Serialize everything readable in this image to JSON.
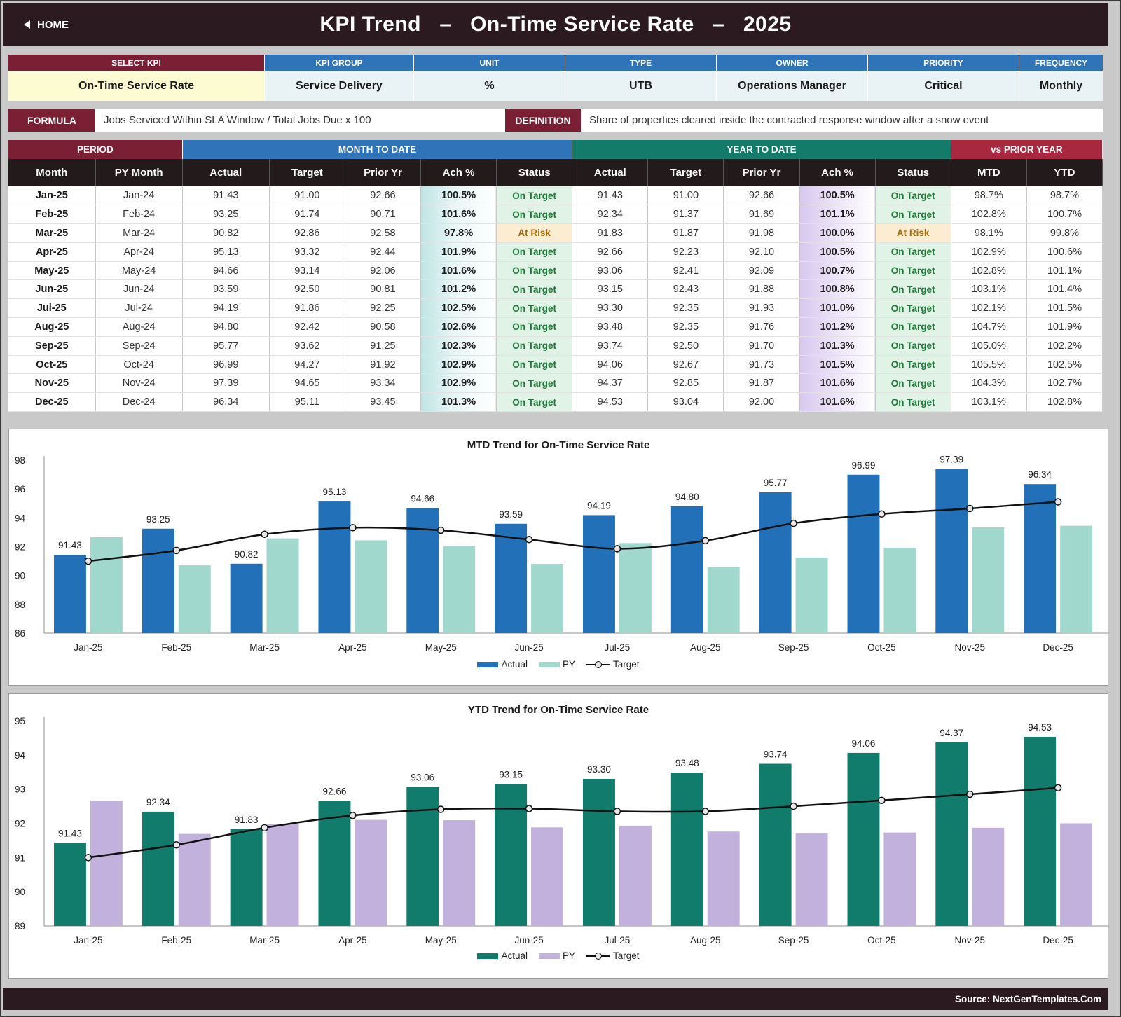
{
  "header": {
    "home_label": "HOME",
    "title": "KPI Trend   –   On-Time Service Rate   –   2025"
  },
  "kpi": {
    "headers": [
      "SELECT KPI",
      "KPI GROUP",
      "UNIT",
      "TYPE",
      "OWNER",
      "PRIORITY",
      "FREQUENCY"
    ],
    "values": [
      "On-Time Service Rate",
      "Service Delivery",
      "%",
      "UTB",
      "Operations Manager",
      "Critical",
      "Monthly"
    ]
  },
  "formula": {
    "formula_label": "FORMULA",
    "formula_text": "Jobs Serviced Within SLA Window / Total Jobs Due x 100",
    "definition_label": "DEFINITION",
    "definition_text": "Share of properties cleared inside the contracted response window after a snow event"
  },
  "table": {
    "groups": [
      "PERIOD",
      "MONTH TO DATE",
      "YEAR TO DATE",
      "vs PRIOR YEAR"
    ],
    "columns": [
      "Month",
      "PY Month",
      "Actual",
      "Target",
      "Prior Yr",
      "Ach %",
      "Status",
      "Actual",
      "Target",
      "Prior Yr",
      "Ach %",
      "Status",
      "MTD",
      "YTD"
    ],
    "rows": [
      [
        "Jan-25",
        "Jan-24",
        "91.43",
        "91.00",
        "92.66",
        "100.5%",
        "On Target",
        "91.43",
        "91.00",
        "92.66",
        "100.5%",
        "On Target",
        "98.7%",
        "98.7%"
      ],
      [
        "Feb-25",
        "Feb-24",
        "93.25",
        "91.74",
        "90.71",
        "101.6%",
        "On Target",
        "92.34",
        "91.37",
        "91.69",
        "101.1%",
        "On Target",
        "102.8%",
        "100.7%"
      ],
      [
        "Mar-25",
        "Mar-24",
        "90.82",
        "92.86",
        "92.58",
        "97.8%",
        "At Risk",
        "91.83",
        "91.87",
        "91.98",
        "100.0%",
        "At Risk",
        "98.1%",
        "99.8%"
      ],
      [
        "Apr-25",
        "Apr-24",
        "95.13",
        "93.32",
        "92.44",
        "101.9%",
        "On Target",
        "92.66",
        "92.23",
        "92.10",
        "100.5%",
        "On Target",
        "102.9%",
        "100.6%"
      ],
      [
        "May-25",
        "May-24",
        "94.66",
        "93.14",
        "92.06",
        "101.6%",
        "On Target",
        "93.06",
        "92.41",
        "92.09",
        "100.7%",
        "On Target",
        "102.8%",
        "101.1%"
      ],
      [
        "Jun-25",
        "Jun-24",
        "93.59",
        "92.50",
        "90.81",
        "101.2%",
        "On Target",
        "93.15",
        "92.43",
        "91.88",
        "100.8%",
        "On Target",
        "103.1%",
        "101.4%"
      ],
      [
        "Jul-25",
        "Jul-24",
        "94.19",
        "91.86",
        "92.25",
        "102.5%",
        "On Target",
        "93.30",
        "92.35",
        "91.93",
        "101.0%",
        "On Target",
        "102.1%",
        "101.5%"
      ],
      [
        "Aug-25",
        "Aug-24",
        "94.80",
        "92.42",
        "90.58",
        "102.6%",
        "On Target",
        "93.48",
        "92.35",
        "91.76",
        "101.2%",
        "On Target",
        "104.7%",
        "101.9%"
      ],
      [
        "Sep-25",
        "Sep-24",
        "95.77",
        "93.62",
        "91.25",
        "102.3%",
        "On Target",
        "93.74",
        "92.50",
        "91.70",
        "101.3%",
        "On Target",
        "105.0%",
        "102.2%"
      ],
      [
        "Oct-25",
        "Oct-24",
        "96.99",
        "94.27",
        "91.92",
        "102.9%",
        "On Target",
        "94.06",
        "92.67",
        "91.73",
        "101.5%",
        "On Target",
        "105.5%",
        "102.5%"
      ],
      [
        "Nov-25",
        "Nov-24",
        "97.39",
        "94.65",
        "93.34",
        "102.9%",
        "On Target",
        "94.37",
        "92.85",
        "91.87",
        "101.6%",
        "On Target",
        "104.3%",
        "102.7%"
      ],
      [
        "Dec-25",
        "Dec-24",
        "96.34",
        "95.11",
        "93.45",
        "101.3%",
        "On Target",
        "94.53",
        "93.04",
        "92.00",
        "101.6%",
        "On Target",
        "103.1%",
        "102.8%"
      ]
    ]
  },
  "colors": {
    "mtd_actual": "#2170b8",
    "mtd_py": "#a0d8ce",
    "ytd_actual": "#117c6c",
    "ytd_py": "#c2b0dd",
    "target_line": "#111111"
  },
  "chart_data": [
    {
      "type": "bar",
      "title": "MTD Trend for On-Time Service Rate",
      "categories": [
        "Jan-25",
        "Feb-25",
        "Mar-25",
        "Apr-25",
        "May-25",
        "Jun-25",
        "Jul-25",
        "Aug-25",
        "Sep-25",
        "Oct-25",
        "Nov-25",
        "Dec-25"
      ],
      "series": [
        {
          "name": "Actual",
          "kind": "bar",
          "values": [
            91.43,
            93.25,
            90.82,
            95.13,
            94.66,
            93.59,
            94.19,
            94.8,
            95.77,
            96.99,
            97.39,
            96.34
          ]
        },
        {
          "name": "PY",
          "kind": "bar",
          "values": [
            92.66,
            90.71,
            92.58,
            92.44,
            92.06,
            90.81,
            92.25,
            90.58,
            91.25,
            91.92,
            93.34,
            93.45
          ]
        },
        {
          "name": "Target",
          "kind": "line",
          "values": [
            91.0,
            91.74,
            92.86,
            93.32,
            93.14,
            92.5,
            91.86,
            92.42,
            93.62,
            94.27,
            94.65,
            95.11
          ]
        }
      ],
      "ylim": [
        86,
        98
      ],
      "yticks": [
        86,
        88,
        90,
        92,
        94,
        96,
        98
      ],
      "legend": "bottom"
    },
    {
      "type": "bar",
      "title": "YTD Trend for On-Time Service Rate",
      "categories": [
        "Jan-25",
        "Feb-25",
        "Mar-25",
        "Apr-25",
        "May-25",
        "Jun-25",
        "Jul-25",
        "Aug-25",
        "Sep-25",
        "Oct-25",
        "Nov-25",
        "Dec-25"
      ],
      "series": [
        {
          "name": "Actual",
          "kind": "bar",
          "values": [
            91.43,
            92.34,
            91.83,
            92.66,
            93.06,
            93.15,
            93.3,
            93.48,
            93.74,
            94.06,
            94.37,
            94.53
          ]
        },
        {
          "name": "PY",
          "kind": "bar",
          "values": [
            92.66,
            91.69,
            91.98,
            92.1,
            92.09,
            91.88,
            91.93,
            91.76,
            91.7,
            91.73,
            91.87,
            92.0
          ]
        },
        {
          "name": "Target",
          "kind": "line",
          "values": [
            91.0,
            91.37,
            91.87,
            92.23,
            92.41,
            92.43,
            92.35,
            92.35,
            92.5,
            92.67,
            92.85,
            93.04
          ]
        }
      ],
      "ylim": [
        89,
        95
      ],
      "yticks": [
        89,
        90,
        91,
        92,
        93,
        94,
        95
      ],
      "legend": "bottom"
    }
  ],
  "footer": {
    "source": "Source: NextGenTemplates.Com"
  }
}
